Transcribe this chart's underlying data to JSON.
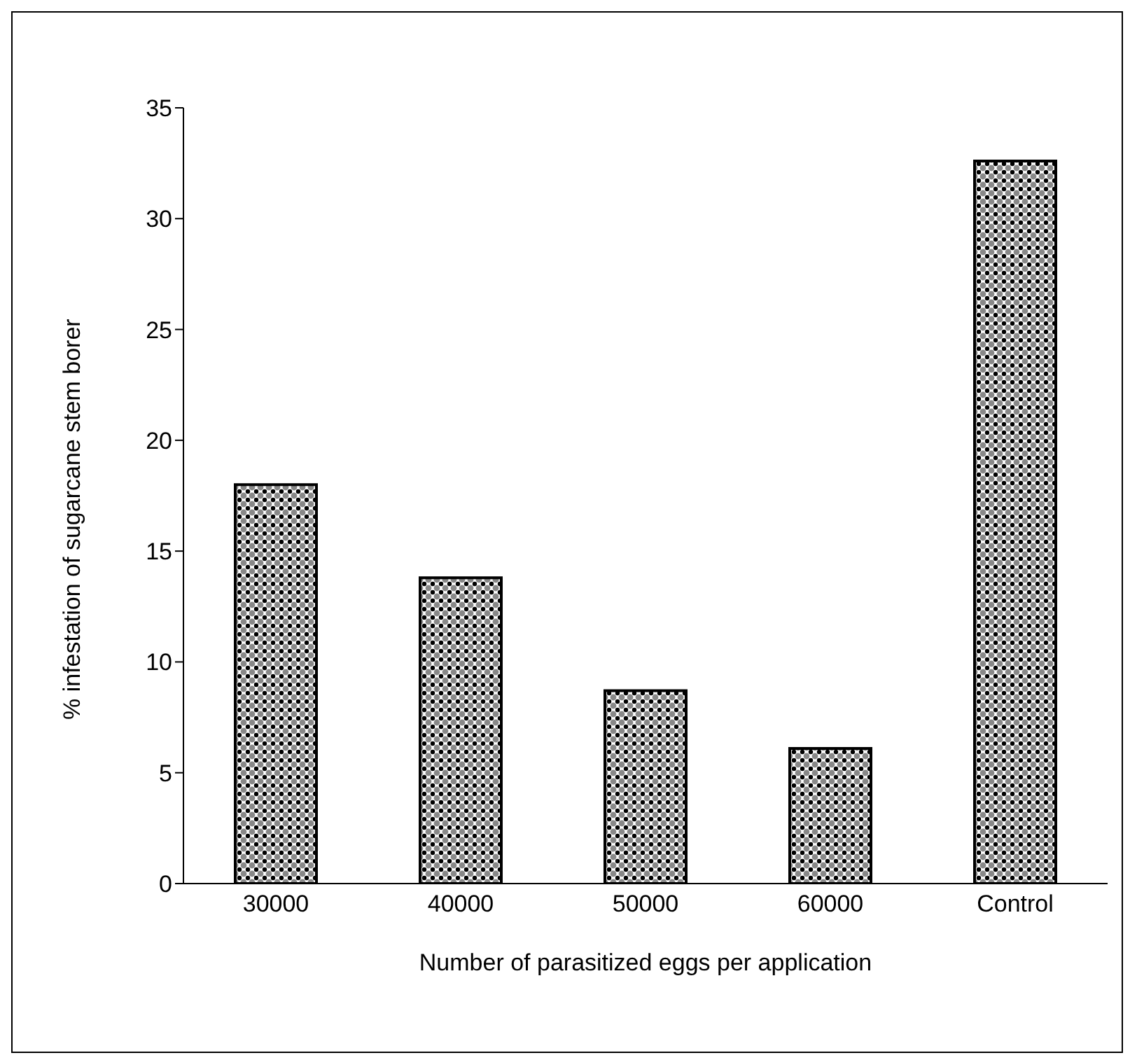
{
  "chart_data": {
    "type": "bar",
    "xlabel": "Number of parasitized eggs per application",
    "ylabel": "% infestation of sugarcane stem borer",
    "categories": [
      "30000",
      "40000",
      "50000",
      "60000",
      "Control"
    ],
    "values": [
      18.0,
      13.8,
      8.7,
      6.1,
      32.6
    ],
    "color": "#000000",
    "ylim": [
      0,
      35
    ],
    "yticks": [
      0,
      5,
      10,
      15,
      20,
      25,
      30,
      35
    ],
    "grid": false,
    "legend": false
  }
}
